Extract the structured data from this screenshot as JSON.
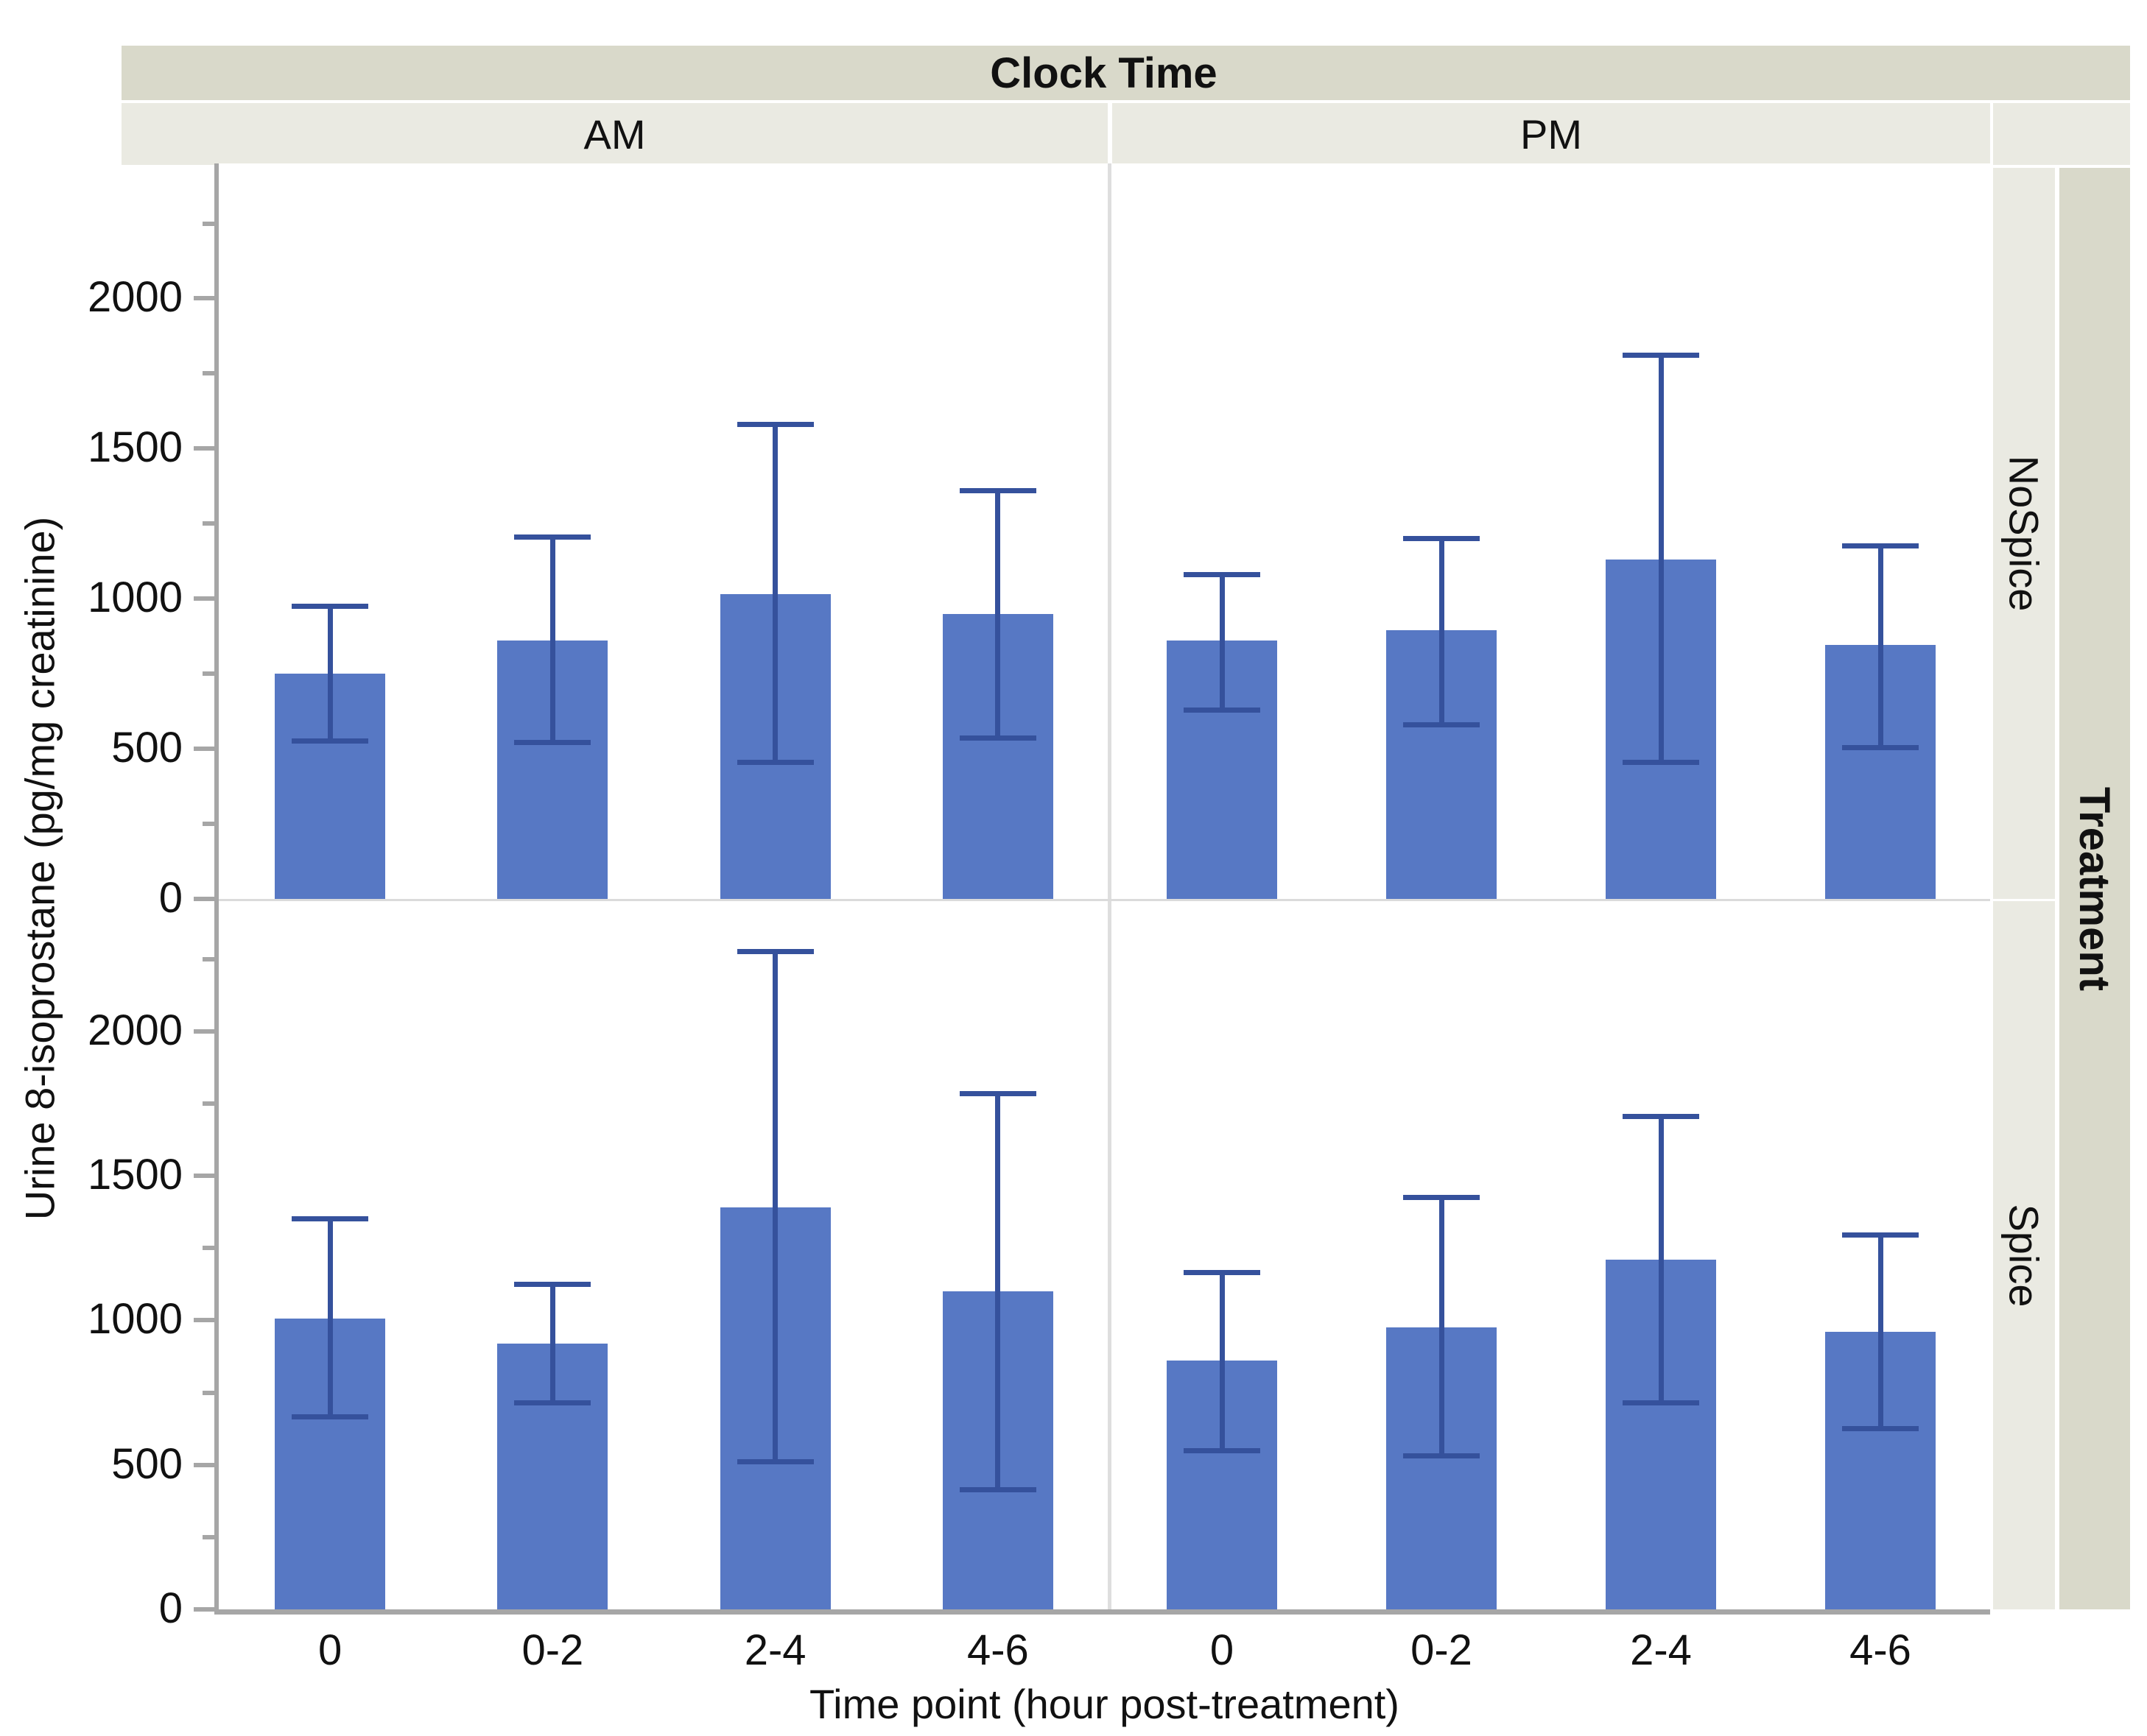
{
  "header": {
    "column_title": "Clock Time",
    "column_levels": [
      "AM",
      "PM"
    ],
    "row_title": "Treatment",
    "row_levels": [
      "NoSpice",
      "Spice"
    ]
  },
  "axes": {
    "xlabel": "Time point (hour post-treatment)",
    "ylabel": "Urine 8-isoprostane (pg/mg creatinine)"
  },
  "chart_data": {
    "type": "bar",
    "title": "",
    "xlabel": "Time point (hour post-treatment)",
    "ylabel": "Urine 8-isoprostane (pg/mg creatinine)",
    "categories": [
      "0",
      "0-2",
      "2-4",
      "4-6"
    ],
    "ylim": [
      0,
      2450
    ],
    "yticks_major": [
      0,
      500,
      1000,
      1500,
      2000
    ],
    "yticks_minor": [
      250,
      750,
      1250,
      1750,
      2250
    ],
    "grid": false,
    "legend_position": "none",
    "error_bars": true,
    "facet_columns": [
      "AM",
      "PM"
    ],
    "facet_rows": [
      "NoSpice",
      "Spice"
    ],
    "panels": [
      {
        "row": "NoSpice",
        "col": "AM",
        "bars": [
          {
            "category": "0",
            "mean": 750,
            "err_low": 525,
            "err_high": 975
          },
          {
            "category": "0-2",
            "mean": 860,
            "err_low": 520,
            "err_high": 1205
          },
          {
            "category": "2-4",
            "mean": 1015,
            "err_low": 455,
            "err_high": 1580
          },
          {
            "category": "4-6",
            "mean": 950,
            "err_low": 535,
            "err_high": 1360
          }
        ]
      },
      {
        "row": "NoSpice",
        "col": "PM",
        "bars": [
          {
            "category": "0",
            "mean": 860,
            "err_low": 630,
            "err_high": 1080
          },
          {
            "category": "0-2",
            "mean": 895,
            "err_low": 580,
            "err_high": 1200
          },
          {
            "category": "2-4",
            "mean": 1130,
            "err_low": 455,
            "err_high": 1810
          },
          {
            "category": "4-6",
            "mean": 845,
            "err_low": 505,
            "err_high": 1175
          }
        ]
      },
      {
        "row": "Spice",
        "col": "AM",
        "bars": [
          {
            "category": "0",
            "mean": 1005,
            "err_low": 665,
            "err_high": 1350
          },
          {
            "category": "0-2",
            "mean": 920,
            "err_low": 715,
            "err_high": 1125
          },
          {
            "category": "2-4",
            "mean": 1390,
            "err_low": 510,
            "err_high": 2275
          },
          {
            "category": "4-6",
            "mean": 1100,
            "err_low": 415,
            "err_high": 1785
          }
        ]
      },
      {
        "row": "Spice",
        "col": "PM",
        "bars": [
          {
            "category": "0",
            "mean": 860,
            "err_low": 550,
            "err_high": 1165
          },
          {
            "category": "0-2",
            "mean": 975,
            "err_low": 530,
            "err_high": 1425
          },
          {
            "category": "2-4",
            "mean": 1210,
            "err_low": 715,
            "err_high": 1705
          },
          {
            "category": "4-6",
            "mean": 960,
            "err_low": 625,
            "err_high": 1295
          }
        ]
      }
    ]
  },
  "colors": {
    "bar_fill": "#5778C4",
    "error_bar": "#35519C",
    "strip_outer": "#D9D9CA",
    "strip_inner": "#EAEAE2",
    "axis_line": "#A6A6A6",
    "panel_divider": "#DEDEDE",
    "text": "#111111"
  }
}
